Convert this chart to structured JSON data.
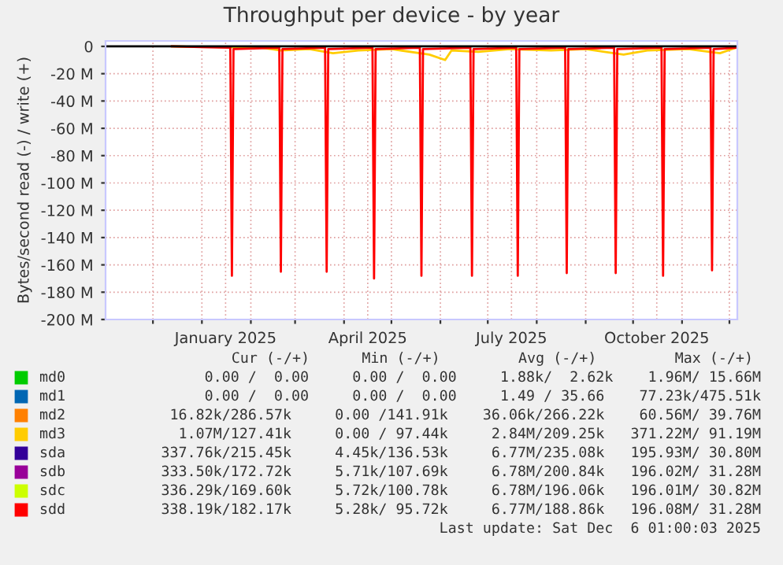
{
  "chart_data": {
    "type": "line",
    "title": "Throughput per device - by year",
    "ylabel": "Bytes/second read (-) / write (+)",
    "xlim": [
      "2024-11-01",
      "2025-12-06"
    ],
    "ylim": [
      -200,
      4
    ],
    "yticks": [
      {
        "value": 0,
        "label": "0"
      },
      {
        "value": -20,
        "label": "-20 M"
      },
      {
        "value": -40,
        "label": "-40 M"
      },
      {
        "value": -60,
        "label": "-60 M"
      },
      {
        "value": -80,
        "label": "-80 M"
      },
      {
        "value": -100,
        "label": "-100 M"
      },
      {
        "value": -120,
        "label": "-120 M"
      },
      {
        "value": -140,
        "label": "-140 M"
      },
      {
        "value": -160,
        "label": "-160 M"
      },
      {
        "value": -180,
        "label": "-180 M"
      },
      {
        "value": -200,
        "label": "-200 M"
      }
    ],
    "xticks": [
      {
        "value": "2024-12-01",
        "label": null
      },
      {
        "value": "2025-01-01",
        "label": null
      },
      {
        "value": "2025-01-16",
        "label": "January 2025"
      },
      {
        "value": "2025-02-01",
        "label": null
      },
      {
        "value": "2025-03-01",
        "label": null
      },
      {
        "value": "2025-04-01",
        "label": null
      },
      {
        "value": "2025-04-16",
        "label": "April 2025"
      },
      {
        "value": "2025-05-01",
        "label": null
      },
      {
        "value": "2025-06-01",
        "label": null
      },
      {
        "value": "2025-07-01",
        "label": null
      },
      {
        "value": "2025-07-16",
        "label": "July 2025"
      },
      {
        "value": "2025-08-01",
        "label": null
      },
      {
        "value": "2025-09-01",
        "label": null
      },
      {
        "value": "2025-10-01",
        "label": null
      },
      {
        "value": "2025-10-16",
        "label": "October 2025"
      },
      {
        "value": "2025-11-01",
        "label": null
      },
      {
        "value": "2025-12-01",
        "label": null
      }
    ],
    "grid": true,
    "legend": "bottom",
    "marker": "none",
    "line_style": "solid",
    "series": [
      {
        "name": "md0",
        "color": "#00cc00"
      },
      {
        "name": "md1",
        "color": "#0066b3"
      },
      {
        "name": "md2",
        "color": "#ff8000"
      },
      {
        "name": "md3",
        "color": "#ffcc00",
        "x": [
          "2024-12-13",
          "2025-02-08",
          "2025-02-20",
          "2025-03-10",
          "2025-03-25",
          "2025-04-10",
          "2025-05-01",
          "2025-05-25",
          "2025-06-04",
          "2025-06-08",
          "2025-06-25",
          "2025-07-15",
          "2025-08-10",
          "2025-09-01",
          "2025-09-25",
          "2025-10-10",
          "2025-11-05",
          "2025-11-25",
          "2025-12-05"
        ],
        "values": [
          0,
          -1,
          -3,
          -2,
          -5,
          -3,
          -2,
          -6,
          -10,
          -3,
          -4,
          -2,
          -3,
          -2,
          -6,
          -3,
          -2,
          -5,
          -1
        ]
      },
      {
        "name": "sda",
        "color": "#330099"
      },
      {
        "name": "sdb",
        "color": "#990099"
      },
      {
        "name": "sdc",
        "color": "#ccff00"
      },
      {
        "name": "sdd",
        "color": "#ff0000",
        "x": [
          "2024-12-13",
          "2025-01-19",
          "2025-01-20",
          "2025-01-21",
          "2025-02-19",
          "2025-02-20",
          "2025-02-21",
          "2025-03-20",
          "2025-03-21",
          "2025-03-22",
          "2025-04-19",
          "2025-04-20",
          "2025-04-21",
          "2025-05-19",
          "2025-05-20",
          "2025-05-21",
          "2025-06-20",
          "2025-06-21",
          "2025-06-22",
          "2025-07-19",
          "2025-07-20",
          "2025-07-21",
          "2025-08-19",
          "2025-08-20",
          "2025-08-21",
          "2025-09-19",
          "2025-09-20",
          "2025-09-21",
          "2025-10-19",
          "2025-10-20",
          "2025-10-21",
          "2025-11-19",
          "2025-11-20",
          "2025-11-21",
          "2025-12-05"
        ],
        "values": [
          0,
          -1,
          -168,
          -2,
          -1,
          -165,
          -2,
          -1,
          -165,
          -2,
          -1,
          -170,
          -2,
          -1,
          -168,
          -2,
          -1,
          -168,
          -2,
          -1,
          -168,
          -2,
          -1,
          -166,
          -2,
          -1,
          -166,
          -2,
          -1,
          -168,
          -2,
          -1,
          -164,
          -2,
          -1
        ]
      }
    ],
    "annotations": [
      "Cur (-/+)      Min (-/+)         Avg (-/+)         Max (-/+)",
      "0.00 /  0.00     0.00 /  0.00     1.88k/  2.62k    1.96M/ 15.66M",
      "0.00 /  0.00     0.00 /  0.00     1.49 / 35.66    77.23k/475.51k",
      "16.82k/286.57k     0.00 /141.91k    36.06k/266.22k    60.56M/ 39.76M",
      "1.07M/127.41k     0.00 / 97.44k     2.84M/209.25k   371.22M/ 91.19M",
      "337.76k/215.45k     4.45k/136.53k     6.77M/235.08k   195.93M/ 30.80M",
      "333.50k/172.72k     5.71k/107.69k     6.78M/200.84k   196.02M/ 31.28M",
      "336.29k/169.60k     5.72k/100.78k     6.78M/196.06k   196.01M/ 30.82M",
      "338.19k/182.17k     5.28k/ 95.72k     6.77M/188.86k   196.08M/ 31.28M",
      "Last update: Sat Dec  6 01:00:03 2025"
    ]
  }
}
